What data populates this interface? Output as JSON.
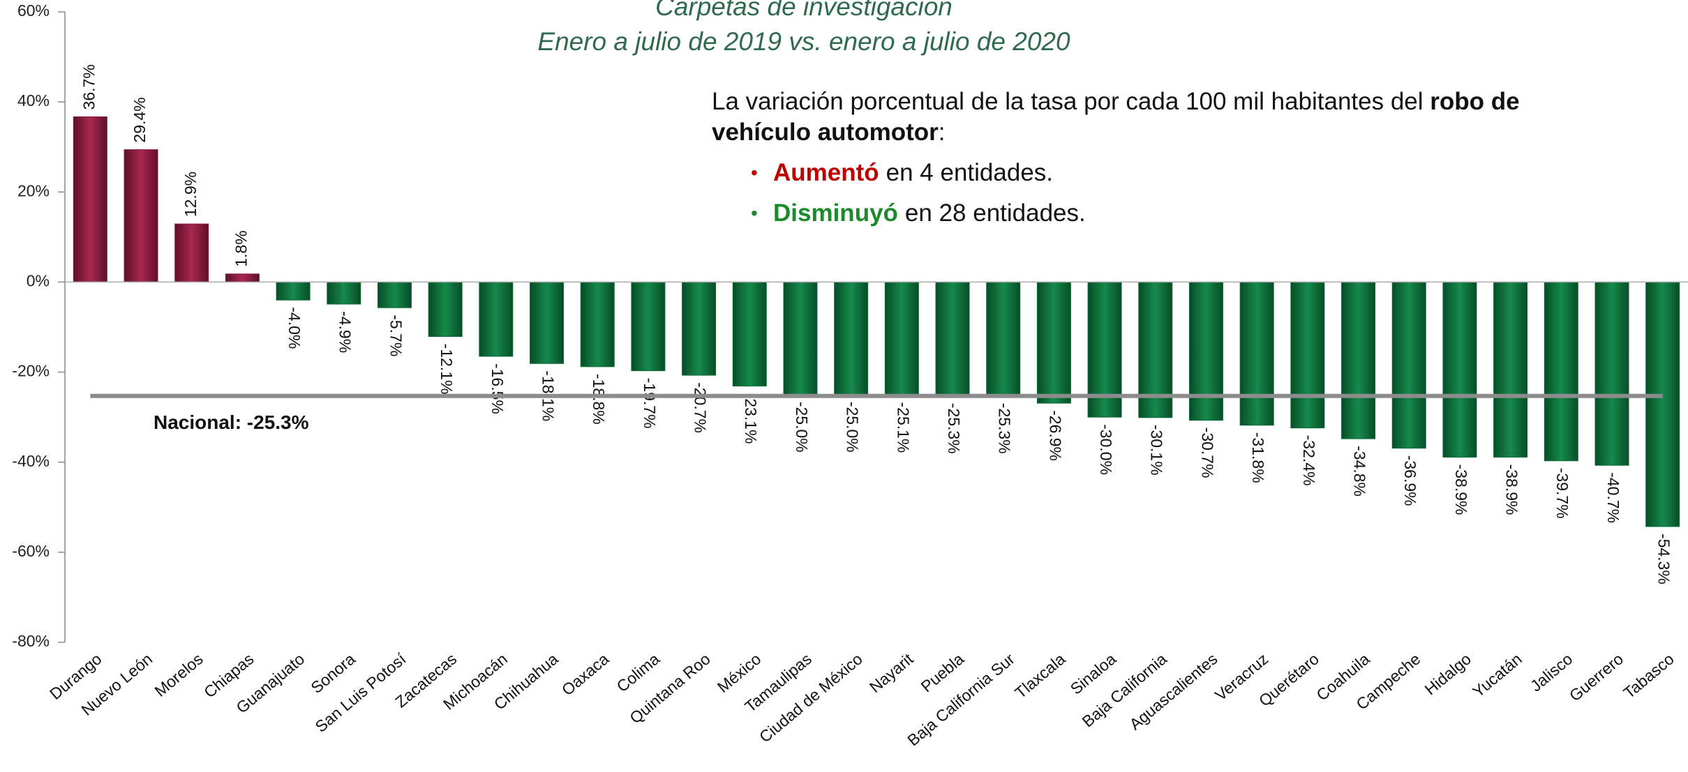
{
  "chart_data": {
    "type": "bar",
    "title": "Carpetas de investigación",
    "subtitle": "Enero a julio de 2019 vs. enero a julio de 2020",
    "categories": [
      "Durango",
      "Nuevo León",
      "Morelos",
      "Chiapas",
      "Guanajuato",
      "Sonora",
      "San Luis Potosí",
      "Zacatecas",
      "Michoacán",
      "Chihuahua",
      "Oaxaca",
      "Colima",
      "Quintana Roo",
      "México",
      "Tamaulipas",
      "Ciudad de México",
      "Nayarit",
      "Puebla",
      "Baja California Sur",
      "Tlaxcala",
      "Sinaloa",
      "Baja California",
      "Aguascalientes",
      "Veracruz",
      "Querétaro",
      "Coahuila",
      "Campeche",
      "Hidalgo",
      "Yucatán",
      "Jalisco",
      "Guerrero",
      "Tabasco"
    ],
    "values": [
      36.7,
      29.4,
      12.9,
      1.8,
      -4.0,
      -4.9,
      -5.7,
      -12.1,
      -16.5,
      -18.1,
      -18.8,
      -19.7,
      -20.7,
      -23.1,
      -25.0,
      -25.0,
      -25.1,
      -25.3,
      -25.3,
      -26.9,
      -30.0,
      -30.1,
      -30.7,
      -31.8,
      -32.4,
      -34.8,
      -36.9,
      -38.9,
      -38.9,
      -39.7,
      -40.7,
      -54.3
    ],
    "value_labels": [
      "36.7%",
      "29.4%",
      "12.9%",
      "1.8%",
      "-4.0%",
      "-4.9%",
      "-5.7%",
      "-12.1%",
      "-16.5%",
      "-18.1%",
      "-18.8%",
      "-19.7%",
      "-20.7%",
      "-23.1%",
      "-25.0%",
      "-25.0%",
      "-25.1%",
      "-25.3%",
      "-25.3%",
      "-26.9%",
      "-30.0%",
      "-30.1%",
      "-30.7%",
      "-31.8%",
      "-32.4%",
      "-34.8%",
      "-36.9%",
      "-38.9%",
      "-38.9%",
      "-39.7%",
      "-40.7%",
      "-54.3%"
    ],
    "positive_color": "#8c1d42",
    "negative_color": "#0e6b3a",
    "ylim": [
      -80,
      60
    ],
    "yticks": [
      {
        "value": -80,
        "label": "-80%"
      },
      {
        "value": -60,
        "label": "-60%"
      },
      {
        "value": -40,
        "label": "-40%"
      },
      {
        "value": -20,
        "label": "-20%"
      },
      {
        "value": 0,
        "label": "0%"
      },
      {
        "value": 20,
        "label": "20%"
      },
      {
        "value": 40,
        "label": "40%"
      },
      {
        "value": 60,
        "label": "60%"
      }
    ],
    "reference_line": {
      "value": -25.3,
      "label": "Nacional: -25.3%",
      "color": "#8c8c8c"
    }
  },
  "annotation": {
    "text": "La variación porcentual de la tasa por cada 100 mil habitantes del",
    "bold": "robo de vehículo automotor",
    "end": ":",
    "bullets": [
      {
        "key": "Aumentó",
        "text": "en 4 entidades."
      },
      {
        "key": "Disminuyó",
        "text": "en 28 entidades."
      }
    ]
  }
}
